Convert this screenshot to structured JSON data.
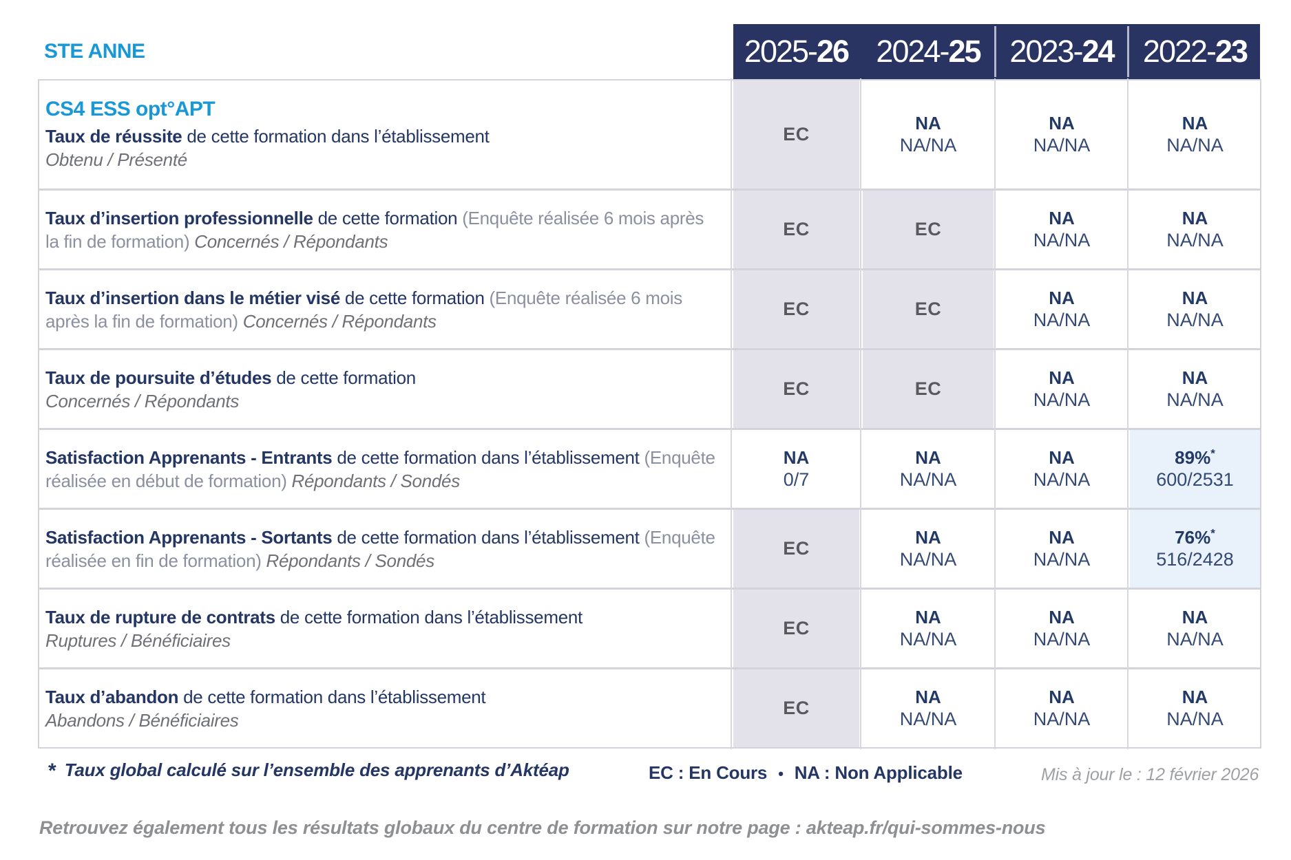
{
  "page": {
    "brand": "STE ANNE",
    "course_title": "CS4 ESS opt°APT"
  },
  "colors": {
    "accent_blue": "#1898d6",
    "navy": "#243663",
    "header_bg": "#2a3462",
    "cell_lavender": "#e3e2eb",
    "cell_lightblue": "#e9f2fa",
    "ec_gray": "#58595c",
    "grid_line": "#d2d3db"
  },
  "header": {
    "columns": [
      {
        "prefix": "2025-",
        "suffix": "26"
      },
      {
        "prefix": "2024-",
        "suffix": "25"
      },
      {
        "prefix": "2023-",
        "suffix": "24"
      },
      {
        "prefix": "2022-",
        "suffix": "23"
      }
    ]
  },
  "rows": [
    {
      "label": {
        "bold": "Taux de réussite ",
        "mid": "de cette formation dans l’établissement",
        "note": "",
        "sub": "Obtenu / Présenté"
      },
      "cells": [
        {
          "type": "ec",
          "main": "EC",
          "sub": ""
        },
        {
          "type": "na",
          "main": "NA",
          "sub": "NA/NA"
        },
        {
          "type": "na",
          "main": "NA",
          "sub": "NA/NA"
        },
        {
          "type": "na",
          "main": "NA",
          "sub": "NA/NA"
        }
      ]
    },
    {
      "label": {
        "bold": "Taux d’insertion professionnelle ",
        "mid": "de cette formation ",
        "note": "(Enquête réalisée 6 mois après la fin de formation) ",
        "sub": "Concernés / Répondants"
      },
      "cells": [
        {
          "type": "ec",
          "main": "EC",
          "sub": ""
        },
        {
          "type": "ec",
          "main": "EC",
          "sub": ""
        },
        {
          "type": "na",
          "main": "NA",
          "sub": "NA/NA"
        },
        {
          "type": "na",
          "main": "NA",
          "sub": "NA/NA"
        }
      ]
    },
    {
      "label": {
        "bold": "Taux d’insertion dans le métier visé ",
        "mid": "de cette formation ",
        "note": "(Enquête réalisée 6 mois après la fin de formation) ",
        "sub": "Concernés / Répondants"
      },
      "cells": [
        {
          "type": "ec",
          "main": "EC",
          "sub": ""
        },
        {
          "type": "ec",
          "main": "EC",
          "sub": ""
        },
        {
          "type": "na",
          "main": "NA",
          "sub": "NA/NA"
        },
        {
          "type": "na",
          "main": "NA",
          "sub": "NA/NA"
        }
      ]
    },
    {
      "label": {
        "bold": "Taux de poursuite d’études ",
        "mid": "de cette formation",
        "note": "",
        "sub": "Concernés / Répondants"
      },
      "cells": [
        {
          "type": "ec",
          "main": "EC",
          "sub": ""
        },
        {
          "type": "ec",
          "main": "EC",
          "sub": ""
        },
        {
          "type": "na",
          "main": "NA",
          "sub": "NA/NA"
        },
        {
          "type": "na",
          "main": "NA",
          "sub": "NA/NA"
        }
      ]
    },
    {
      "label": {
        "bold": "Satisfaction Apprenants - Entrants ",
        "mid": "de cette formation dans l’établissement ",
        "note": "(Enquête réalisée en début de formation) ",
        "sub": "Répondants / Sondés"
      },
      "cells": [
        {
          "type": "na",
          "main": "NA",
          "sub": "0/7"
        },
        {
          "type": "na",
          "main": "NA",
          "sub": "NA/NA"
        },
        {
          "type": "na",
          "main": "NA",
          "sub": "NA/NA"
        },
        {
          "type": "pct",
          "main": "89%",
          "star": "*",
          "sub": "600/2531"
        }
      ]
    },
    {
      "label": {
        "bold": "Satisfaction Apprenants - Sortants ",
        "mid": "de cette formation dans l’établissement ",
        "note": "(Enquête réalisée en fin de formation) ",
        "sub": "Répondants / Sondés"
      },
      "cells": [
        {
          "type": "ec",
          "main": "EC",
          "sub": ""
        },
        {
          "type": "na",
          "main": "NA",
          "sub": "NA/NA"
        },
        {
          "type": "na",
          "main": "NA",
          "sub": "NA/NA"
        },
        {
          "type": "pct",
          "main": "76%",
          "star": "*",
          "sub": "516/2428"
        }
      ]
    },
    {
      "label": {
        "bold": "Taux de rupture de contrats ",
        "mid": "de cette formation dans l’établissement",
        "note": "",
        "sub": "Ruptures / Bénéficiaires"
      },
      "cells": [
        {
          "type": "ec",
          "main": "EC",
          "sub": ""
        },
        {
          "type": "na",
          "main": "NA",
          "sub": "NA/NA"
        },
        {
          "type": "na",
          "main": "NA",
          "sub": "NA/NA"
        },
        {
          "type": "na",
          "main": "NA",
          "sub": "NA/NA"
        }
      ]
    },
    {
      "label": {
        "bold": "Taux d’abandon ",
        "mid": "de cette formation dans l’établissement",
        "note": "",
        "sub": "Abandons / Bénéficiaires"
      },
      "cells": [
        {
          "type": "ec",
          "main": "EC",
          "sub": ""
        },
        {
          "type": "na",
          "main": "NA",
          "sub": "NA/NA"
        },
        {
          "type": "na",
          "main": "NA",
          "sub": "NA/NA"
        },
        {
          "type": "na",
          "main": "NA",
          "sub": "NA/NA"
        }
      ]
    }
  ],
  "footer": {
    "star": "*",
    "note": "Taux global calculé sur l’ensemble des apprenants d’Aktéap",
    "legend_ec": "EC : En Cours",
    "bullet": "•",
    "legend_na": "NA : Non Applicable",
    "updated": "Mis à jour le : 12 février 2026",
    "bottom": "Retrouvez également tous les résultats globaux du centre de formation sur notre page : akteap.fr/qui-sommes-nous"
  }
}
